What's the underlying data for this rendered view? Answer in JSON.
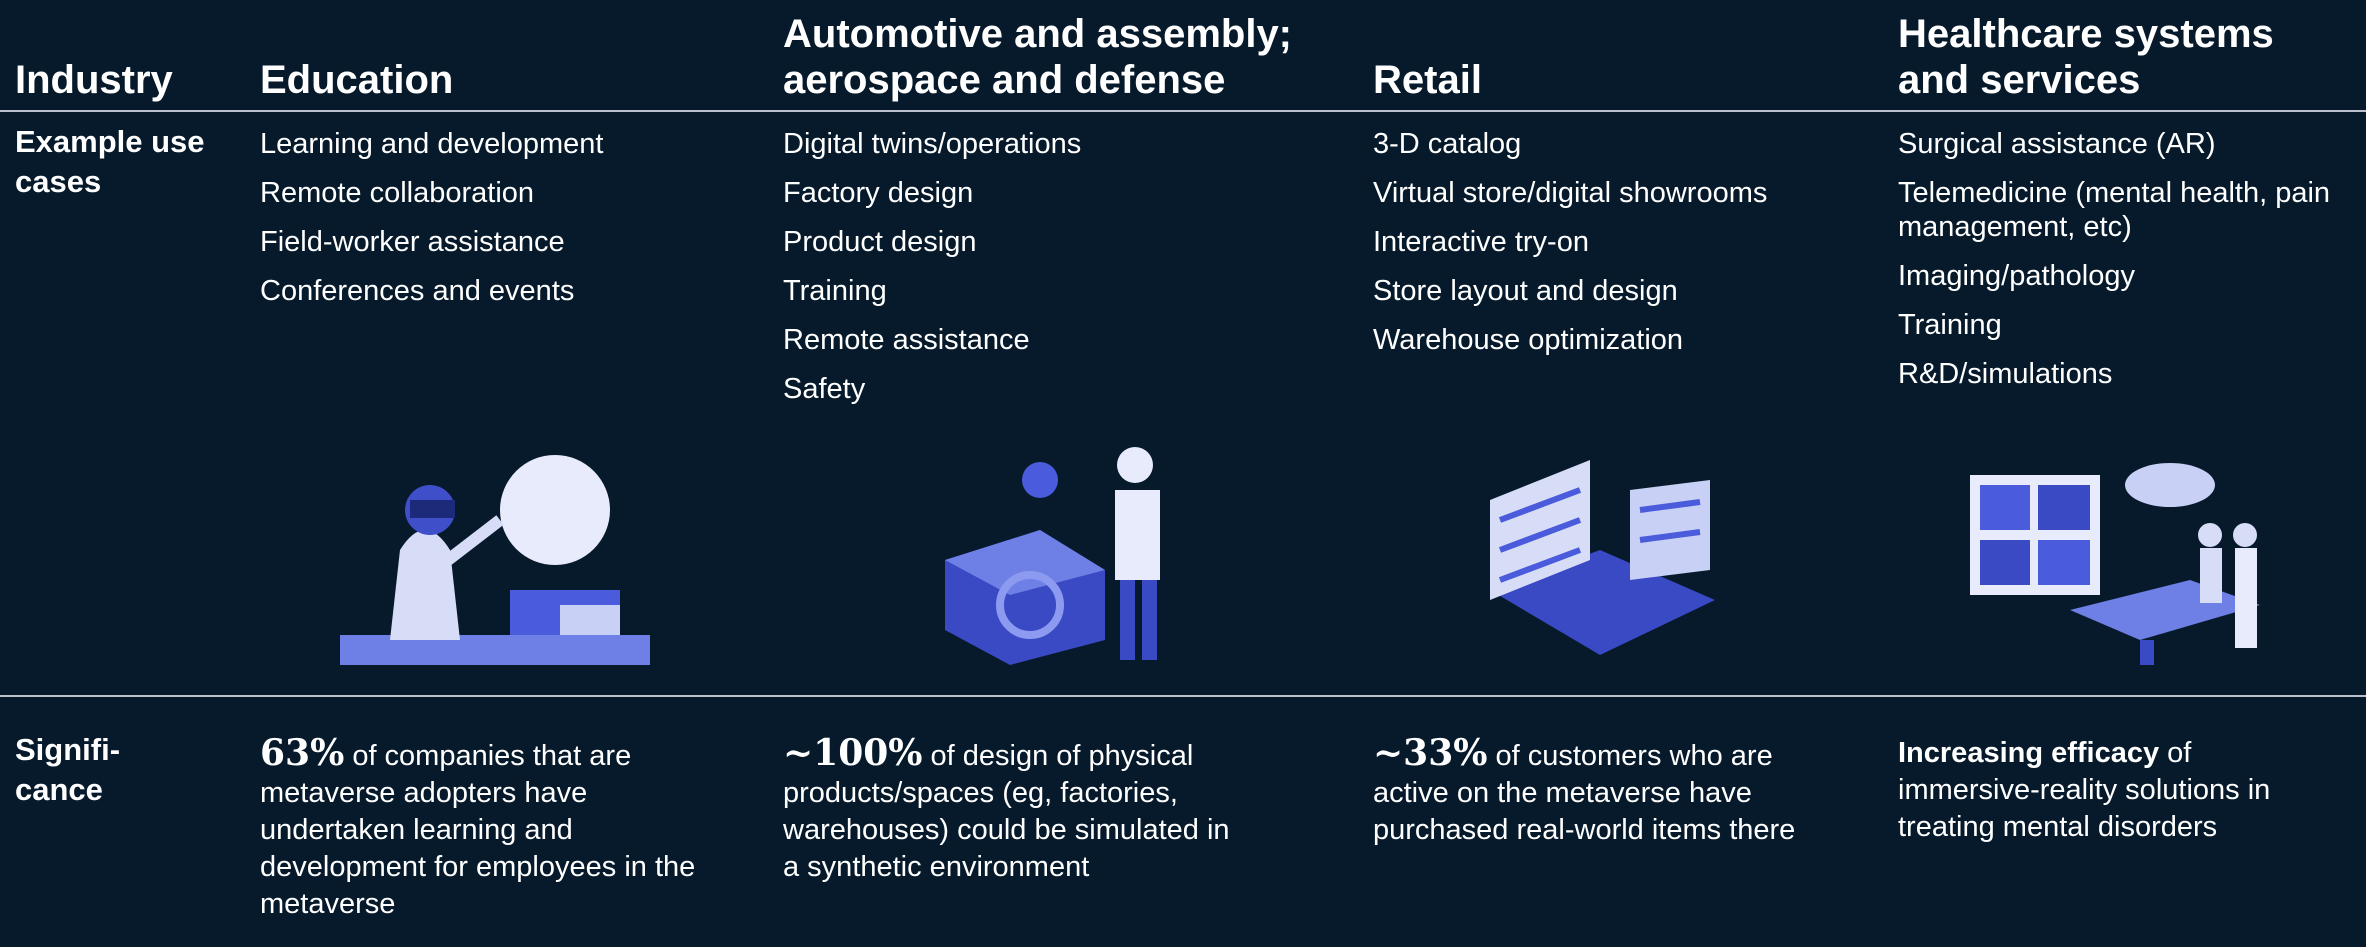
{
  "header": {
    "row_label": "Industry",
    "columns": [
      "Education",
      "Automotive and assembly; aerospace and defense",
      "Retail",
      "Healthcare systems and services"
    ]
  },
  "use_cases": {
    "row_label": "Example use cases",
    "columns": [
      [
        "Learning and development",
        "Remote collaboration",
        "Field-worker assistance",
        "Conferences and events"
      ],
      [
        "Digital twins/operations",
        "Factory design",
        "Product design",
        "Training",
        "Remote assistance",
        "Safety"
      ],
      [
        "3-D catalog",
        "Virtual store/digital showrooms",
        "Interactive try-on",
        "Store layout and design",
        "Warehouse optimization"
      ],
      [
        "Surgical assistance (AR)",
        "Telemedicine (mental health, pain management, etc)",
        "Imaging/pathology",
        "Training",
        "R&D/simulations"
      ]
    ]
  },
  "significance": {
    "row_label": "Signifi-\ncance",
    "columns": [
      {
        "lead": "63%",
        "text": "of companies that are metaverse adopters have undertaken learning and development for employees in the metaverse"
      },
      {
        "lead": "~100%",
        "text": "of design of physical products/spaces (eg, factories, warehouses) could be simulated in a synthetic environment"
      },
      {
        "lead": "~33%",
        "text": "of customers who are active on the metaverse have purchased real-world items there"
      },
      {
        "lead": "Increasing efficacy",
        "text": "of immersive-reality solutions in treating mental disorders"
      }
    ]
  }
}
